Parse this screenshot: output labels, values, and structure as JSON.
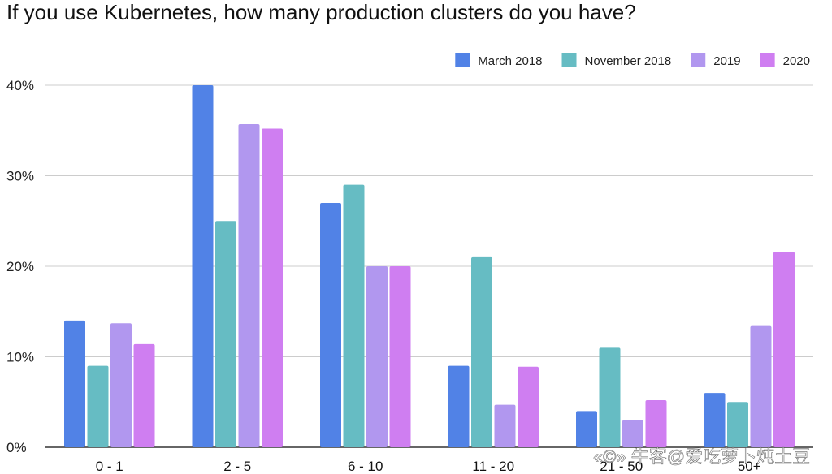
{
  "chart_data": {
    "type": "bar",
    "title": "If you use Kubernetes, how many production clusters do you have?",
    "xlabel": "",
    "ylabel": "",
    "ylim": [
      0,
      40
    ],
    "yticks": [
      0,
      10,
      20,
      30,
      40
    ],
    "ytick_labels": [
      "0%",
      "10%",
      "20%",
      "30%",
      "40%"
    ],
    "grid": true,
    "legend_position": "top-right",
    "categories": [
      "0 - 1",
      "2 - 5",
      "6 - 10",
      "11 - 20",
      "21 - 50",
      "50+"
    ],
    "series": [
      {
        "name": "March 2018",
        "color": "#5182e6",
        "values": [
          14,
          40,
          27,
          9,
          4,
          6
        ]
      },
      {
        "name": "November 2018",
        "color": "#66bcc3",
        "values": [
          9,
          25,
          29,
          21,
          11,
          5
        ]
      },
      {
        "name": "2019",
        "color": "#b197ef",
        "values": [
          13.7,
          35.7,
          20,
          4.7,
          3,
          13.4
        ]
      },
      {
        "name": "2020",
        "color": "#cf7ef1",
        "values": [
          11.4,
          35.2,
          20,
          8.9,
          5.2,
          21.6
        ]
      }
    ]
  },
  "watermark": {
    "text": "«©» 牛客@爱吃萝卜炖土豆"
  }
}
